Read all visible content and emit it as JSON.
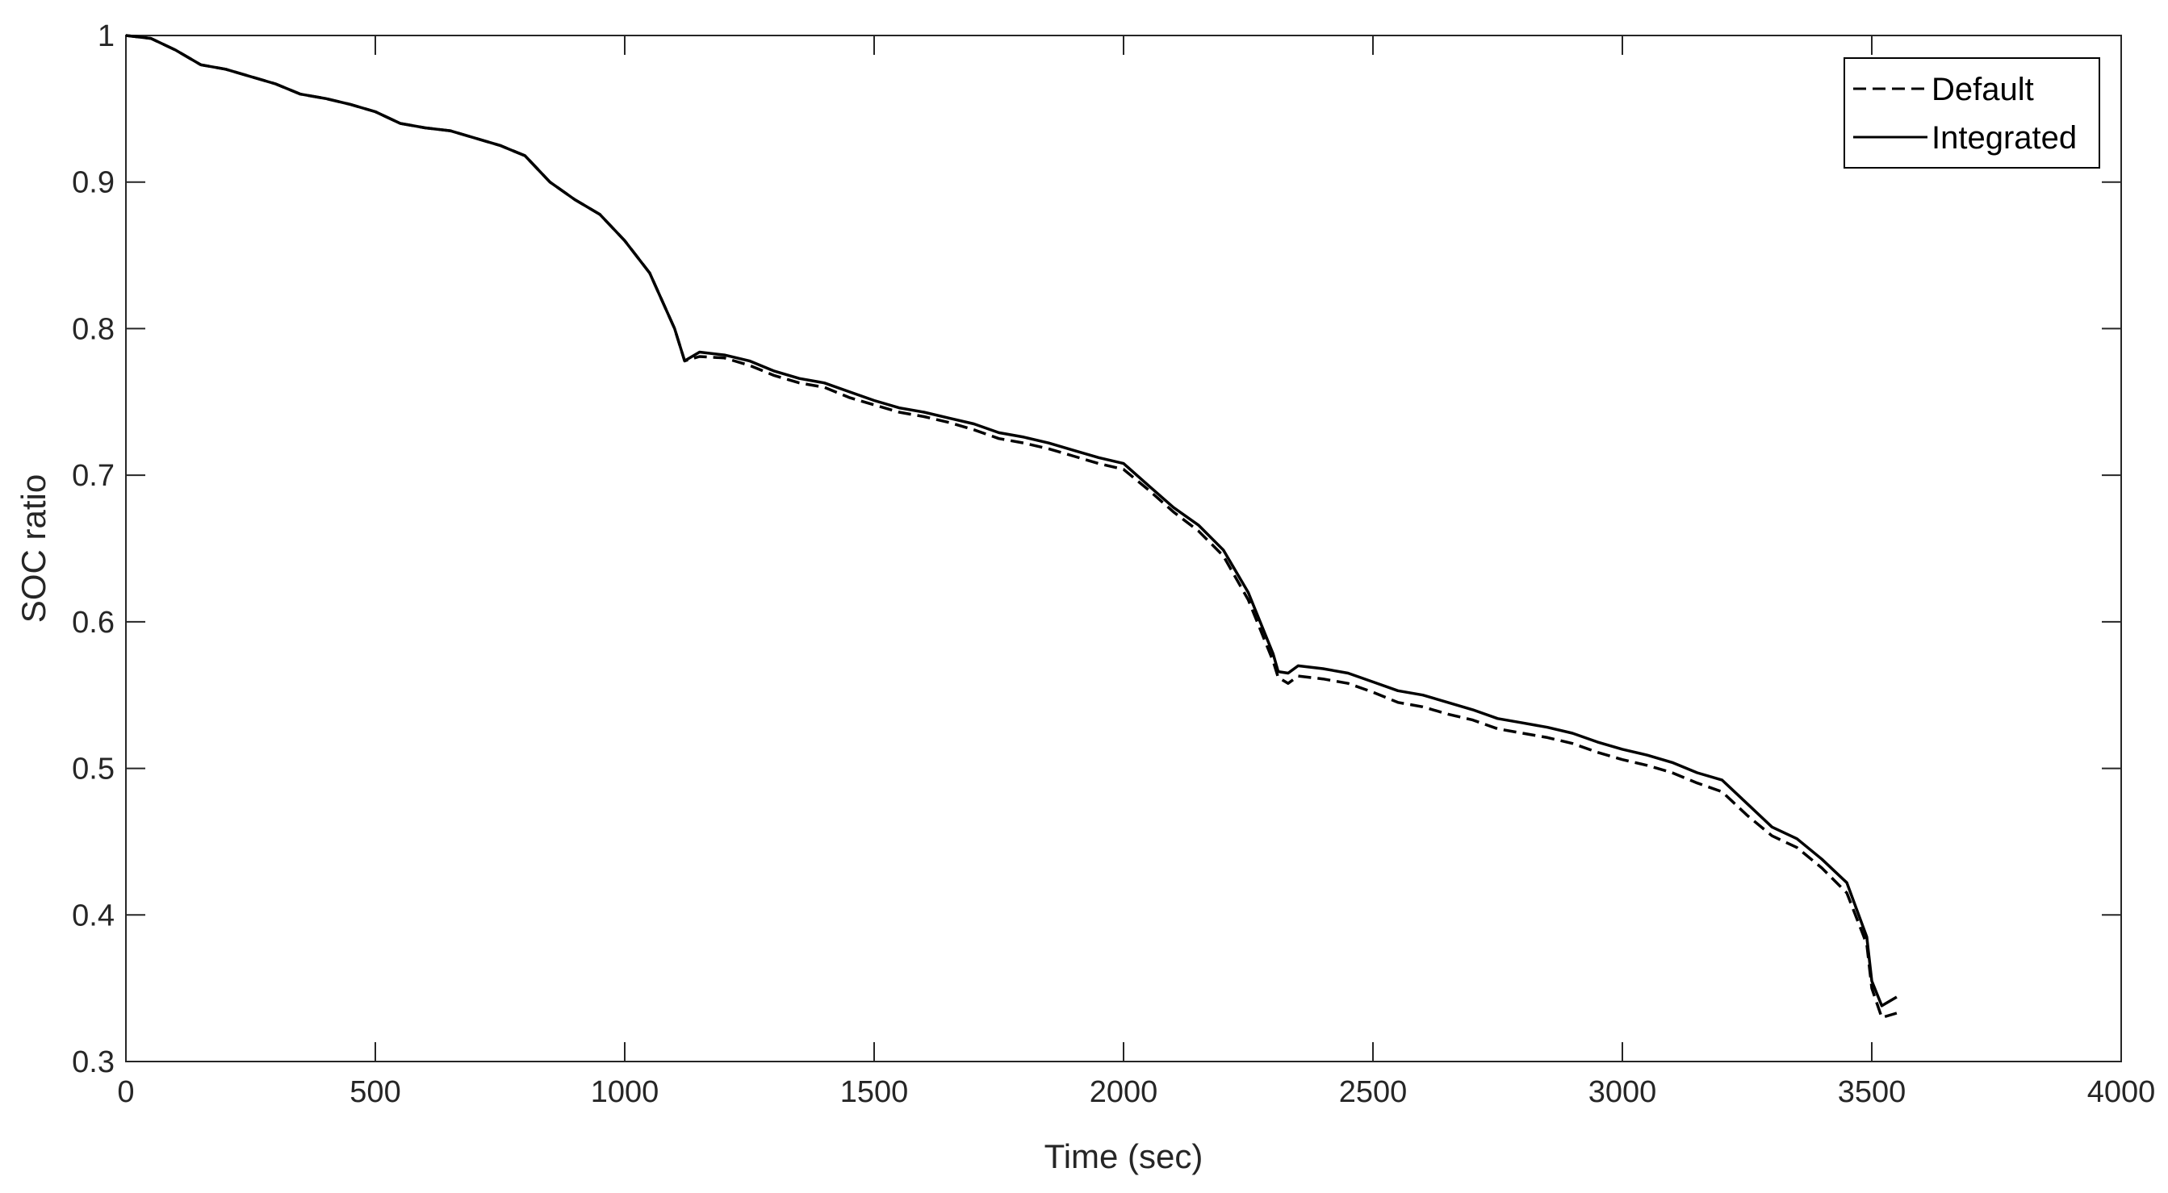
{
  "chart_data": {
    "type": "line",
    "xlabel": "Time (sec)",
    "ylabel": "SOC ratio",
    "xlim": [
      0,
      4000
    ],
    "ylim": [
      0.3,
      1.0
    ],
    "xticks": [
      0,
      500,
      1000,
      1500,
      2000,
      2500,
      3000,
      3500,
      4000
    ],
    "xtick_labels": [
      "0",
      "500",
      "1000",
      "1500",
      "2000",
      "2500",
      "3000",
      "3500",
      "4000"
    ],
    "yticks": [
      0.3,
      0.4,
      0.5,
      0.6,
      0.7,
      0.8,
      0.9,
      1.0
    ],
    "ytick_labels": [
      "0.3",
      "0.4",
      "0.5",
      "0.6",
      "0.7",
      "0.8",
      "0.9",
      "1"
    ],
    "grid": false,
    "legend_position": "top-right",
    "colors": {
      "line": "#000000",
      "axes": "#262626"
    },
    "series": [
      {
        "name": "Default",
        "style": "dashed",
        "x": [
          0,
          50,
          100,
          150,
          200,
          250,
          300,
          350,
          400,
          450,
          500,
          550,
          600,
          650,
          700,
          750,
          800,
          850,
          900,
          950,
          1000,
          1050,
          1100,
          1120,
          1150,
          1200,
          1250,
          1300,
          1350,
          1400,
          1450,
          1500,
          1550,
          1600,
          1650,
          1700,
          1750,
          1800,
          1850,
          1900,
          1950,
          2000,
          2050,
          2100,
          2150,
          2200,
          2250,
          2300,
          2310,
          2330,
          2350,
          2400,
          2450,
          2500,
          2550,
          2600,
          2650,
          2700,
          2750,
          2800,
          2850,
          2900,
          2950,
          3000,
          3050,
          3100,
          3150,
          3200,
          3250,
          3300,
          3350,
          3400,
          3450,
          3490,
          3500,
          3520,
          3550
        ],
        "y": [
          1.0,
          0.998,
          0.99,
          0.98,
          0.977,
          0.972,
          0.967,
          0.96,
          0.957,
          0.953,
          0.948,
          0.94,
          0.937,
          0.935,
          0.93,
          0.925,
          0.918,
          0.9,
          0.888,
          0.878,
          0.86,
          0.838,
          0.8,
          0.778,
          0.781,
          0.78,
          0.775,
          0.768,
          0.763,
          0.76,
          0.753,
          0.748,
          0.743,
          0.74,
          0.736,
          0.731,
          0.725,
          0.722,
          0.718,
          0.713,
          0.708,
          0.704,
          0.69,
          0.675,
          0.662,
          0.645,
          0.615,
          0.573,
          0.562,
          0.558,
          0.563,
          0.561,
          0.558,
          0.552,
          0.545,
          0.542,
          0.537,
          0.533,
          0.527,
          0.524,
          0.521,
          0.517,
          0.511,
          0.506,
          0.502,
          0.497,
          0.49,
          0.484,
          0.468,
          0.454,
          0.446,
          0.432,
          0.415,
          0.38,
          0.35,
          0.33,
          0.333
        ]
      },
      {
        "name": "Integrated",
        "style": "solid",
        "x": [
          0,
          50,
          100,
          150,
          200,
          250,
          300,
          350,
          400,
          450,
          500,
          550,
          600,
          650,
          700,
          750,
          800,
          850,
          900,
          950,
          1000,
          1050,
          1100,
          1120,
          1150,
          1200,
          1250,
          1300,
          1350,
          1400,
          1450,
          1500,
          1550,
          1600,
          1650,
          1700,
          1750,
          1800,
          1850,
          1900,
          1950,
          2000,
          2050,
          2100,
          2150,
          2200,
          2250,
          2300,
          2310,
          2330,
          2350,
          2400,
          2450,
          2500,
          2550,
          2600,
          2650,
          2700,
          2750,
          2800,
          2850,
          2900,
          2950,
          3000,
          3050,
          3100,
          3150,
          3200,
          3250,
          3300,
          3350,
          3400,
          3450,
          3490,
          3500,
          3520,
          3550
        ],
        "y": [
          1.0,
          0.998,
          0.99,
          0.98,
          0.977,
          0.972,
          0.967,
          0.96,
          0.957,
          0.953,
          0.948,
          0.94,
          0.937,
          0.935,
          0.93,
          0.925,
          0.918,
          0.9,
          0.888,
          0.878,
          0.86,
          0.838,
          0.8,
          0.778,
          0.784,
          0.782,
          0.778,
          0.771,
          0.766,
          0.763,
          0.757,
          0.751,
          0.746,
          0.743,
          0.739,
          0.735,
          0.729,
          0.726,
          0.722,
          0.717,
          0.712,
          0.708,
          0.693,
          0.678,
          0.666,
          0.649,
          0.62,
          0.578,
          0.566,
          0.565,
          0.57,
          0.568,
          0.565,
          0.559,
          0.553,
          0.55,
          0.545,
          0.54,
          0.534,
          0.531,
          0.528,
          0.524,
          0.518,
          0.513,
          0.509,
          0.504,
          0.497,
          0.492,
          0.476,
          0.46,
          0.452,
          0.438,
          0.422,
          0.385,
          0.355,
          0.338,
          0.344
        ]
      }
    ]
  }
}
